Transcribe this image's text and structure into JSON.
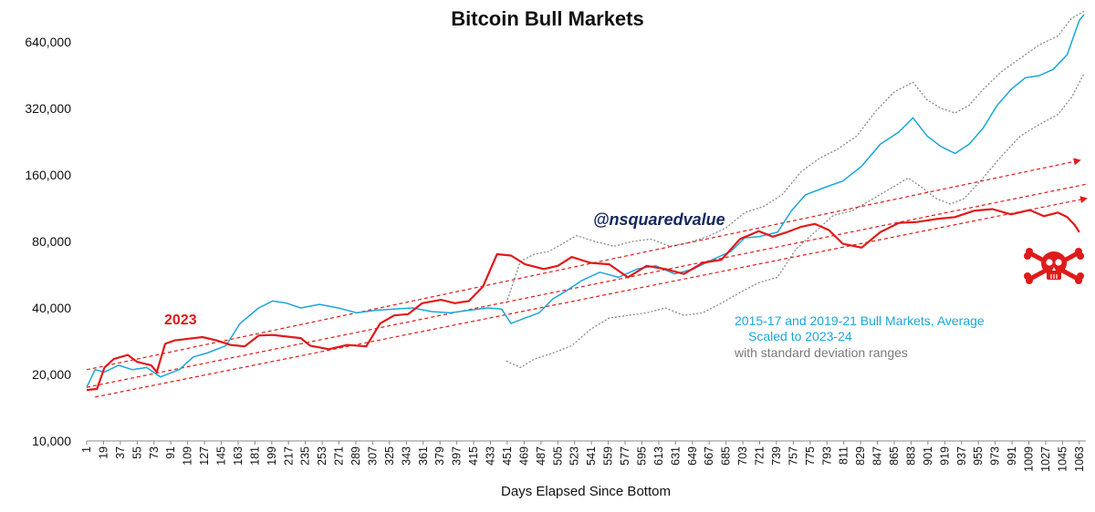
{
  "chart_data": {
    "type": "line",
    "title": "Bitcoin Bull Markets",
    "xlabel": "Days Elapsed Since Bottom",
    "ylabel": "",
    "yscale": "log",
    "ylim": [
      10000,
      900000
    ],
    "xlim": [
      1,
      1070
    ],
    "yticks": [
      10000,
      20000,
      40000,
      80000,
      160000,
      320000,
      640000
    ],
    "ytick_labels": [
      "10,000",
      "20,000",
      "40,000",
      "80,000",
      "160,000",
      "320,000",
      "640,000"
    ],
    "xticks": [
      1,
      19,
      37,
      55,
      73,
      91,
      109,
      127,
      145,
      163,
      181,
      199,
      217,
      235,
      253,
      271,
      289,
      307,
      325,
      343,
      361,
      379,
      397,
      415,
      433,
      451,
      469,
      487,
      505,
      523,
      541,
      559,
      577,
      595,
      613,
      631,
      649,
      667,
      685,
      703,
      721,
      739,
      757,
      775,
      793,
      811,
      829,
      847,
      865,
      883,
      901,
      919,
      937,
      955,
      973,
      991,
      1009,
      1027,
      1045,
      1063
    ],
    "grid": false,
    "legend": "none",
    "series": [
      {
        "name": "2023",
        "color": "#e01a1a",
        "points": [
          [
            1,
            17000
          ],
          [
            12,
            17200
          ],
          [
            20,
            21500
          ],
          [
            30,
            23500
          ],
          [
            45,
            24500
          ],
          [
            55,
            22800
          ],
          [
            70,
            22000
          ],
          [
            76,
            20500
          ],
          [
            85,
            27500
          ],
          [
            95,
            28500
          ],
          [
            110,
            29000
          ],
          [
            125,
            29500
          ],
          [
            140,
            28500
          ],
          [
            155,
            27200
          ],
          [
            170,
            26800
          ],
          [
            185,
            30000
          ],
          [
            200,
            30200
          ],
          [
            220,
            29500
          ],
          [
            230,
            29200
          ],
          [
            240,
            27000
          ],
          [
            260,
            26000
          ],
          [
            280,
            27200
          ],
          [
            300,
            26800
          ],
          [
            315,
            34000
          ],
          [
            330,
            37000
          ],
          [
            345,
            37500
          ],
          [
            360,
            42000
          ],
          [
            380,
            43500
          ],
          [
            395,
            42000
          ],
          [
            410,
            43000
          ],
          [
            425,
            50000
          ],
          [
            440,
            70000
          ],
          [
            455,
            69000
          ],
          [
            470,
            63000
          ],
          [
            490,
            60000
          ],
          [
            505,
            62000
          ],
          [
            520,
            68000
          ],
          [
            540,
            64000
          ],
          [
            560,
            63000
          ],
          [
            580,
            55000
          ],
          [
            600,
            62000
          ],
          [
            620,
            60000
          ],
          [
            640,
            57000
          ],
          [
            660,
            64000
          ],
          [
            680,
            66000
          ],
          [
            700,
            82000
          ],
          [
            720,
            89000
          ],
          [
            735,
            84000
          ],
          [
            750,
            88000
          ],
          [
            765,
            93000
          ],
          [
            780,
            96000
          ],
          [
            795,
            90000
          ],
          [
            810,
            78000
          ],
          [
            830,
            75000
          ],
          [
            850,
            88000
          ],
          [
            870,
            97000
          ],
          [
            890,
            98000
          ],
          [
            910,
            101000
          ],
          [
            930,
            103000
          ],
          [
            950,
            110000
          ],
          [
            970,
            112000
          ],
          [
            990,
            106000
          ],
          [
            1010,
            111000
          ],
          [
            1025,
            104000
          ],
          [
            1040,
            108000
          ],
          [
            1050,
            103000
          ],
          [
            1058,
            95000
          ],
          [
            1063,
            88000
          ]
        ]
      },
      {
        "name": "2015-17 and 2019-21 Bull Markets, Average",
        "color": "#1aa7d8",
        "points": [
          [
            1,
            17500
          ],
          [
            10,
            21000
          ],
          [
            20,
            20500
          ],
          [
            35,
            22000
          ],
          [
            50,
            21000
          ],
          [
            65,
            21500
          ],
          [
            80,
            19500
          ],
          [
            100,
            21000
          ],
          [
            115,
            24000
          ],
          [
            130,
            25000
          ],
          [
            150,
            27000
          ],
          [
            165,
            34000
          ],
          [
            185,
            40000
          ],
          [
            200,
            43000
          ],
          [
            215,
            42000
          ],
          [
            230,
            40000
          ],
          [
            250,
            41500
          ],
          [
            270,
            40000
          ],
          [
            290,
            38000
          ],
          [
            310,
            39000
          ],
          [
            330,
            39500
          ],
          [
            350,
            40000
          ],
          [
            370,
            38500
          ],
          [
            390,
            38000
          ],
          [
            410,
            39000
          ],
          [
            430,
            40000
          ],
          [
            445,
            39500
          ],
          [
            455,
            34000
          ],
          [
            470,
            36000
          ],
          [
            485,
            38000
          ],
          [
            500,
            44000
          ],
          [
            515,
            48000
          ],
          [
            530,
            53000
          ],
          [
            550,
            58000
          ],
          [
            570,
            55000
          ],
          [
            590,
            60000
          ],
          [
            610,
            62000
          ],
          [
            630,
            57000
          ],
          [
            650,
            60000
          ],
          [
            670,
            66000
          ],
          [
            690,
            72000
          ],
          [
            705,
            83000
          ],
          [
            720,
            84000
          ],
          [
            740,
            88000
          ],
          [
            755,
            110000
          ],
          [
            770,
            130000
          ],
          [
            790,
            140000
          ],
          [
            810,
            150000
          ],
          [
            830,
            175000
          ],
          [
            850,
            220000
          ],
          [
            870,
            250000
          ],
          [
            885,
            290000
          ],
          [
            900,
            240000
          ],
          [
            915,
            215000
          ],
          [
            930,
            200000
          ],
          [
            945,
            220000
          ],
          [
            960,
            260000
          ],
          [
            975,
            330000
          ],
          [
            990,
            390000
          ],
          [
            1005,
            440000
          ],
          [
            1020,
            450000
          ],
          [
            1035,
            480000
          ],
          [
            1050,
            560000
          ],
          [
            1063,
            800000
          ],
          [
            1068,
            850000
          ]
        ]
      },
      {
        "name": "upper standard deviation",
        "color": "#8a8a8a",
        "points": [
          [
            450,
            42000
          ],
          [
            465,
            65000
          ],
          [
            480,
            70000
          ],
          [
            495,
            72000
          ],
          [
            510,
            78000
          ],
          [
            525,
            85000
          ],
          [
            545,
            80000
          ],
          [
            565,
            76000
          ],
          [
            585,
            80000
          ],
          [
            605,
            82000
          ],
          [
            625,
            76000
          ],
          [
            645,
            79000
          ],
          [
            665,
            84000
          ],
          [
            685,
            92000
          ],
          [
            705,
            108000
          ],
          [
            725,
            115000
          ],
          [
            745,
            130000
          ],
          [
            765,
            165000
          ],
          [
            785,
            190000
          ],
          [
            805,
            210000
          ],
          [
            825,
            240000
          ],
          [
            845,
            310000
          ],
          [
            865,
            380000
          ],
          [
            885,
            420000
          ],
          [
            900,
            350000
          ],
          [
            915,
            320000
          ],
          [
            930,
            305000
          ],
          [
            945,
            330000
          ],
          [
            960,
            390000
          ],
          [
            980,
            470000
          ],
          [
            1000,
            540000
          ],
          [
            1020,
            620000
          ],
          [
            1040,
            680000
          ],
          [
            1055,
            820000
          ],
          [
            1068,
            880000
          ]
        ]
      },
      {
        "name": "lower standard deviation",
        "color": "#8a8a8a",
        "points": [
          [
            450,
            23000
          ],
          [
            465,
            21500
          ],
          [
            480,
            23500
          ],
          [
            500,
            25000
          ],
          [
            520,
            27000
          ],
          [
            540,
            32000
          ],
          [
            560,
            36000
          ],
          [
            580,
            37000
          ],
          [
            600,
            38000
          ],
          [
            620,
            40000
          ],
          [
            640,
            37000
          ],
          [
            660,
            38000
          ],
          [
            680,
            42000
          ],
          [
            700,
            47000
          ],
          [
            720,
            52000
          ],
          [
            740,
            55000
          ],
          [
            760,
            74000
          ],
          [
            780,
            88000
          ],
          [
            800,
            105000
          ],
          [
            820,
            110000
          ],
          [
            840,
            123000
          ],
          [
            860,
            138000
          ],
          [
            880,
            155000
          ],
          [
            895,
            140000
          ],
          [
            910,
            125000
          ],
          [
            925,
            118000
          ],
          [
            940,
            125000
          ],
          [
            960,
            155000
          ],
          [
            980,
            195000
          ],
          [
            1000,
            240000
          ],
          [
            1020,
            270000
          ],
          [
            1040,
            300000
          ],
          [
            1055,
            360000
          ],
          [
            1068,
            460000
          ]
        ]
      },
      {
        "name": "upper trend channel",
        "color": "#e01a1a",
        "dashed": true,
        "arrow": true,
        "points": [
          [
            1,
            21000
          ],
          [
            1063,
            186000
          ]
        ]
      },
      {
        "name": "middle trend channel",
        "color": "#e01a1a",
        "dashed": true,
        "arrow": false,
        "points": [
          [
            1,
            17500
          ],
          [
            1070,
            145000
          ]
        ]
      },
      {
        "name": "lower trend channel",
        "color": "#e01a1a",
        "dashed": true,
        "arrow": true,
        "points": [
          [
            10,
            15800
          ],
          [
            1070,
            125000
          ]
        ]
      }
    ],
    "annotations": {
      "label_2023": "2023",
      "blue_line1": "2015-17 and 2019-21 Bull Markets, Average",
      "blue_line2": "Scaled to 2023-24",
      "gray_note": "with standard deviation ranges",
      "watermark": "@nsquaredvalue"
    }
  },
  "icons": {
    "skull": "skull-crossbones-icon"
  }
}
